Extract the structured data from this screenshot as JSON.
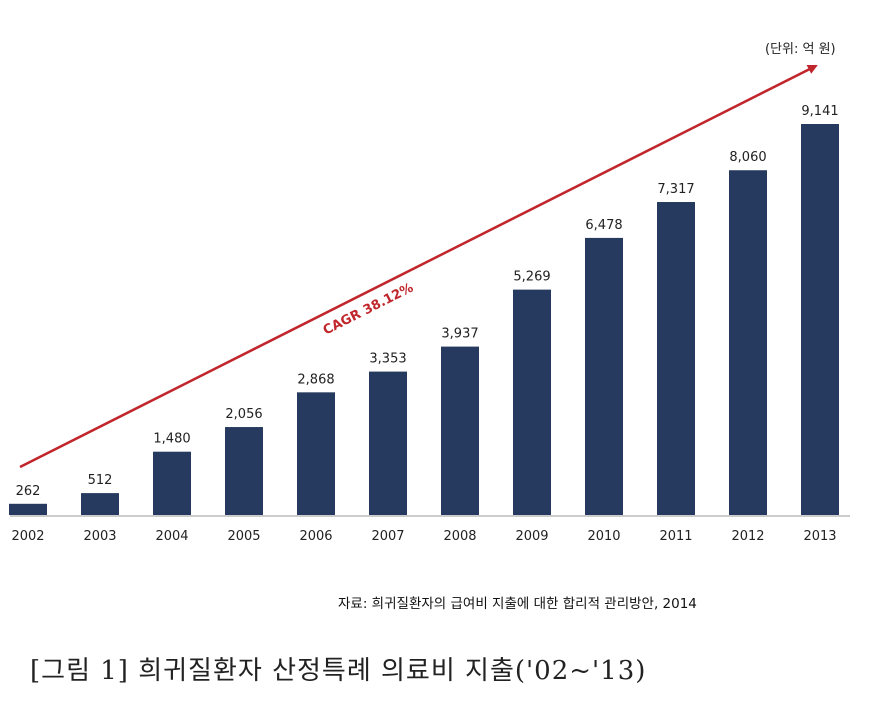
{
  "unit_label": "(단위: 억 원)",
  "source": "자료: 희귀질환자의 급여비 지출에 대한 합리적 관리방안, 2014",
  "caption": "[그림 1] 희귀질환자 산정특례 의료비 지출('02~'13)",
  "colors": {
    "bar": "#253a5e",
    "trend": "#c0262b",
    "axis": "#9a9a9a"
  },
  "chart_data": {
    "type": "bar",
    "categories": [
      "2002",
      "2003",
      "2004",
      "2005",
      "2006",
      "2007",
      "2008",
      "2009",
      "2010",
      "2011",
      "2012",
      "2013"
    ],
    "values": [
      262,
      512,
      1480,
      2056,
      2868,
      3353,
      3937,
      5269,
      6478,
      7317,
      8060,
      9141
    ],
    "value_labels": [
      "262",
      "512",
      "1,480",
      "2,056",
      "2,868",
      "3,353",
      "3,937",
      "5,269",
      "6,478",
      "7,317",
      "8,060",
      "9,141"
    ],
    "ylim": [
      0,
      9141
    ],
    "grid": false,
    "annotations": [
      {
        "type": "arrow",
        "text": "CAGR 38.12%",
        "from_value": 0,
        "to_value": 10500
      }
    ]
  }
}
